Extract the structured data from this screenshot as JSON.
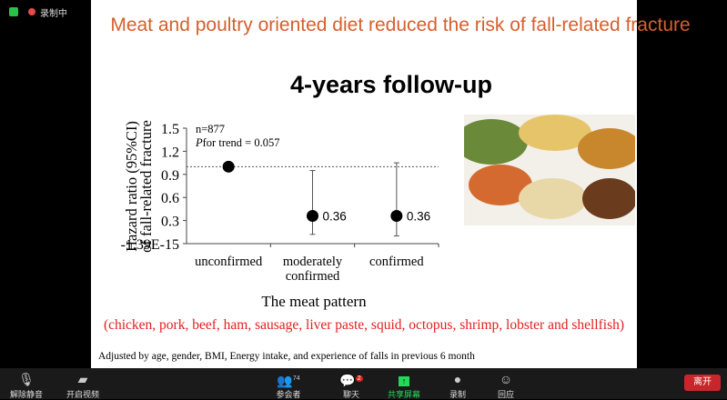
{
  "status": {
    "recording_label": "录制中"
  },
  "slide": {
    "title": "Meat and poultry oriented diet reduced the risk of fall-related fracture",
    "subtitle": "4-years follow-up",
    "foods": "(chicken, pork, beef, ham, sausage, liver paste, squid, octopus, shrimp, lobster and shellfish)",
    "footnote": "Adjusted by age, gender, BMI, Energy intake, and experience of falls in previous 6 month"
  },
  "chart_data": {
    "type": "scatter",
    "ylabel_line1": "Hazard ratio (95%CI)",
    "ylabel_line2": "of fall-related fracture",
    "xlabel": "The meat pattern",
    "annotation_n": "n=877",
    "annotation_p_italic": "P",
    "annotation_p": "for trend = 0.057",
    "categories": [
      "unconfirmed",
      "moderately confirmed",
      "confirmed"
    ],
    "values": [
      1.0,
      0.36,
      0.36
    ],
    "ci_low": [
      null,
      0.12,
      0.1
    ],
    "ci_high": [
      null,
      0.95,
      1.05
    ],
    "data_labels": [
      "",
      "0.36",
      "0.36"
    ],
    "yticks": [
      "-1.39E-15",
      "0.3",
      "0.6",
      "0.9",
      "1.2",
      "1.5"
    ],
    "ylim": [
      0,
      1.5
    ],
    "reference_line": 1.0
  },
  "toolbar": {
    "items": [
      {
        "label": "解除静音",
        "icon": "mic-muted-icon"
      },
      {
        "label": "开启视频",
        "icon": "video-off-icon"
      },
      {
        "label": "参会者",
        "icon": "participants-icon",
        "count": "74"
      },
      {
        "label": "聊天",
        "icon": "chat-icon",
        "badge": "2"
      },
      {
        "label": "共享屏幕",
        "icon": "share-screen-icon"
      },
      {
        "label": "录制",
        "icon": "record-icon"
      },
      {
        "label": "回应",
        "icon": "reaction-icon"
      }
    ],
    "leave": "离开",
    "share_color": "#23d959",
    "leave_color": "#c8262b"
  }
}
